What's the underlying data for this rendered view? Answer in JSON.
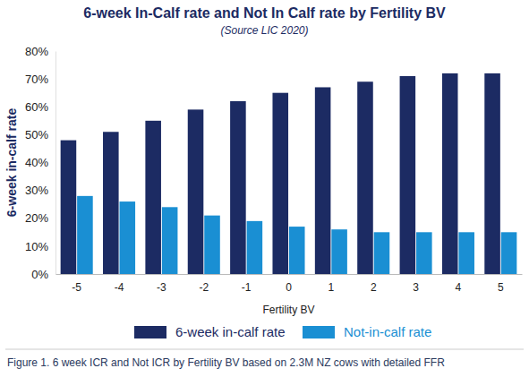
{
  "chart_data": {
    "type": "bar",
    "title": "6-week In-Calf rate and Not In Calf rate by Fertility BV",
    "subtitle": "(Source LIC 2020)",
    "y_label": "6-week in-calf rate",
    "x_label": "Fertility BV",
    "caption": "Figure 1. 6 week ICR and Not ICR by Fertility BV based on 2.3M NZ cows with detailed FFR",
    "categories": [
      "-5",
      "-4",
      "-3",
      "-2",
      "-1",
      "0",
      "1",
      "2",
      "3",
      "4",
      "5"
    ],
    "series": [
      {
        "name": "6-week in-calf rate",
        "color": "#1c2b63",
        "values": [
          48,
          51,
          55,
          59,
          62,
          65,
          67,
          69,
          71,
          72,
          72
        ]
      },
      {
        "name": "Not-in-calf rate",
        "color": "#1a8fd3",
        "values": [
          28,
          26,
          24,
          21,
          19,
          17,
          16,
          15,
          15,
          15,
          15
        ]
      }
    ],
    "ylim": [
      0,
      80
    ],
    "yticks": [
      {
        "value": 0,
        "label": "0%"
      },
      {
        "value": 10,
        "label": "10%"
      },
      {
        "value": 20,
        "label": "20%"
      },
      {
        "value": 30,
        "label": "30%"
      },
      {
        "value": 40,
        "label": "40%"
      },
      {
        "value": 50,
        "label": "50%"
      },
      {
        "value": 60,
        "label": "60%"
      },
      {
        "value": 70,
        "label": "70%"
      },
      {
        "value": 80,
        "label": "80%"
      }
    ],
    "grid": false,
    "legend": "bottom"
  }
}
